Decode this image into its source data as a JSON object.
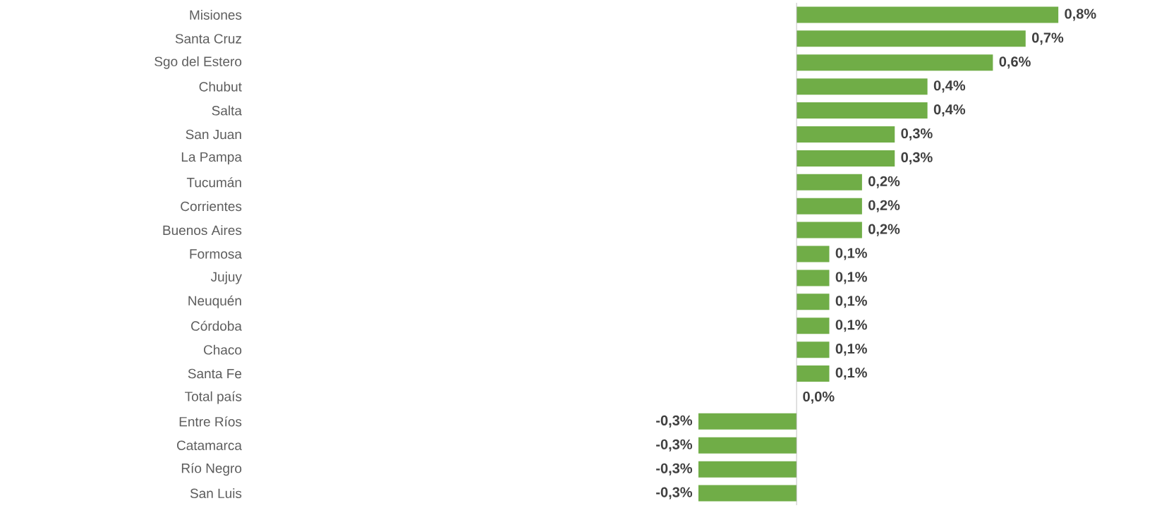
{
  "chart_data": {
    "type": "bar",
    "orientation": "horizontal",
    "color": "#70ad47",
    "categories": [
      "Misiones",
      "Santa Cruz",
      "Sgo del Estero",
      "Chubut",
      "Salta",
      "San Juan",
      "La Pampa",
      "Tucumán",
      "Corrientes",
      "Buenos Aires",
      "Formosa",
      "Jujuy",
      "Neuquén",
      "Córdoba",
      "Chaco",
      "Santa Fe",
      "Total país",
      "Entre Ríos",
      "Catamarca",
      "Río Negro",
      "San Luis"
    ],
    "values": [
      0.8,
      0.7,
      0.6,
      0.4,
      0.4,
      0.3,
      0.3,
      0.2,
      0.2,
      0.2,
      0.1,
      0.1,
      0.1,
      0.1,
      0.1,
      0.1,
      0.0,
      -0.3,
      -0.3,
      -0.3,
      -0.3
    ],
    "value_labels": [
      "0,8%",
      "0,7%",
      "0,6%",
      "0,4%",
      "0,4%",
      "0,3%",
      "0,3%",
      "0,2%",
      "0,2%",
      "0,2%",
      "0,1%",
      "0,1%",
      "0,1%",
      "0,1%",
      "0,1%",
      "0,1%",
      "0,0%",
      "-0,3%",
      "-0,3%",
      "-0,3%",
      "-0,3%"
    ]
  }
}
